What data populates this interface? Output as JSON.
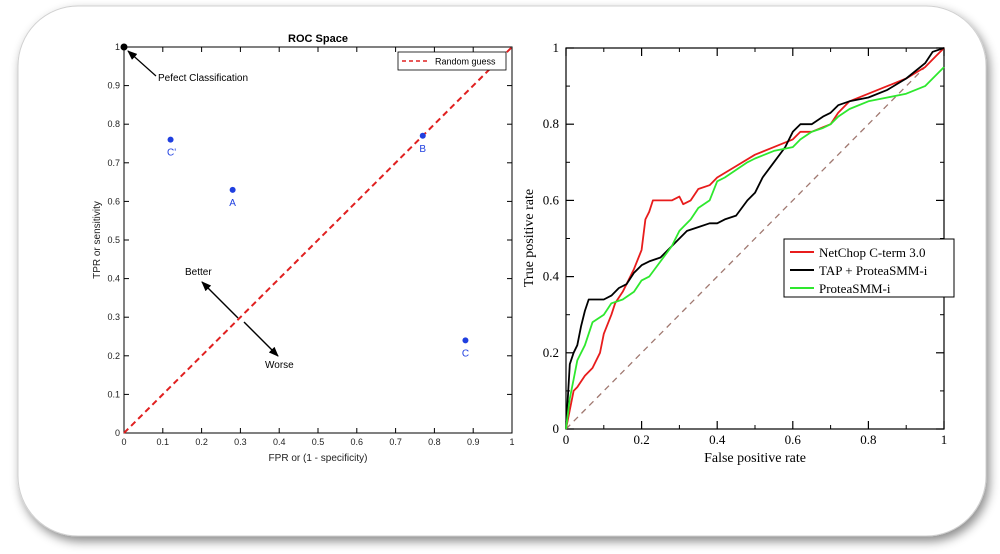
{
  "chart_data": [
    {
      "type": "scatter",
      "title": "ROC Space",
      "xlabel": "FPR or (1 - specificity)",
      "ylabel": "TPR or sensitivity",
      "xlim": [
        0,
        1
      ],
      "ylim": [
        0,
        1
      ],
      "xticks": [
        "0",
        "0.1",
        "0.2",
        "0.3",
        "0.4",
        "0.5",
        "0.6",
        "0.7",
        "0.8",
        "0.9",
        "1"
      ],
      "yticks": [
        "0",
        "0.1",
        "0.2",
        "0.3",
        "0.4",
        "0.5",
        "0.6",
        "0.7",
        "0.8",
        "0.9",
        "1"
      ],
      "grid": false,
      "legend": "top-right",
      "points": [
        {
          "label": "A",
          "x": 0.28,
          "y": 0.63
        },
        {
          "label": "B",
          "x": 0.77,
          "y": 0.77
        },
        {
          "label": "C",
          "x": 0.88,
          "y": 0.24
        },
        {
          "label": "C'",
          "x": 0.12,
          "y": 0.76
        }
      ],
      "perfect_point": {
        "x": 0,
        "y": 1,
        "label": "Pefect Classification"
      },
      "reference_line": {
        "name": "Random guess",
        "x": [
          0,
          1
        ],
        "y": [
          0,
          1
        ],
        "color": "#e02020",
        "style": "dashed"
      },
      "annotations": {
        "better": "Better",
        "worse": "Worse"
      },
      "point_color": "#1f3fe0"
    },
    {
      "type": "line",
      "title": "",
      "xlabel": "False positive rate",
      "ylabel": "True positive rate",
      "xlim": [
        0,
        1
      ],
      "ylim": [
        0,
        1
      ],
      "xticks": [
        "0",
        "0.2",
        "0.4",
        "0.6",
        "0.8",
        "1"
      ],
      "yticks": [
        "0",
        "0.2",
        "0.4",
        "0.6",
        "0.8",
        "1"
      ],
      "grid": false,
      "legend": "center-right",
      "reference_line": {
        "x": [
          0,
          1
        ],
        "y": [
          0,
          1
        ],
        "color": "#a07870",
        "style": "dashed"
      },
      "series": [
        {
          "name": "NetChop C-term 3.0",
          "color": "#e81c1c",
          "x": [
            0,
            0.02,
            0.03,
            0.05,
            0.07,
            0.09,
            0.1,
            0.12,
            0.13,
            0.15,
            0.16,
            0.18,
            0.2,
            0.21,
            0.22,
            0.23,
            0.25,
            0.28,
            0.3,
            0.31,
            0.33,
            0.35,
            0.38,
            0.4,
            0.45,
            0.5,
            0.55,
            0.6,
            0.62,
            0.65,
            0.7,
            0.72,
            0.75,
            0.8,
            0.85,
            0.9,
            0.95,
            0.98,
            1.0
          ],
          "y": [
            0,
            0.1,
            0.11,
            0.14,
            0.16,
            0.2,
            0.25,
            0.3,
            0.33,
            0.36,
            0.38,
            0.42,
            0.47,
            0.55,
            0.57,
            0.6,
            0.6,
            0.6,
            0.61,
            0.59,
            0.6,
            0.63,
            0.64,
            0.66,
            0.69,
            0.72,
            0.74,
            0.76,
            0.78,
            0.78,
            0.8,
            0.83,
            0.86,
            0.88,
            0.9,
            0.92,
            0.95,
            0.98,
            1.0
          ]
        },
        {
          "name": "TAP + ProteaSMM-i",
          "color": "#000000",
          "x": [
            0,
            0.01,
            0.02,
            0.03,
            0.04,
            0.05,
            0.06,
            0.08,
            0.1,
            0.12,
            0.14,
            0.16,
            0.18,
            0.2,
            0.22,
            0.25,
            0.28,
            0.3,
            0.32,
            0.35,
            0.38,
            0.4,
            0.42,
            0.45,
            0.48,
            0.5,
            0.52,
            0.55,
            0.58,
            0.6,
            0.62,
            0.65,
            0.68,
            0.7,
            0.72,
            0.75,
            0.8,
            0.85,
            0.9,
            0.95,
            0.97,
            1.0
          ],
          "y": [
            0,
            0.17,
            0.2,
            0.22,
            0.27,
            0.31,
            0.34,
            0.34,
            0.34,
            0.35,
            0.37,
            0.38,
            0.41,
            0.43,
            0.44,
            0.45,
            0.48,
            0.5,
            0.52,
            0.53,
            0.54,
            0.54,
            0.55,
            0.56,
            0.6,
            0.62,
            0.66,
            0.7,
            0.74,
            0.78,
            0.8,
            0.8,
            0.82,
            0.83,
            0.85,
            0.86,
            0.87,
            0.89,
            0.92,
            0.96,
            0.99,
            1.0
          ]
        },
        {
          "name": "ProteaSMM-i",
          "color": "#2ee82e",
          "x": [
            0,
            0.01,
            0.02,
            0.03,
            0.05,
            0.07,
            0.1,
            0.12,
            0.15,
            0.18,
            0.2,
            0.22,
            0.25,
            0.28,
            0.3,
            0.33,
            0.35,
            0.38,
            0.4,
            0.42,
            0.45,
            0.48,
            0.5,
            0.55,
            0.6,
            0.62,
            0.65,
            0.68,
            0.7,
            0.72,
            0.75,
            0.8,
            0.85,
            0.9,
            0.95,
            0.98,
            1.0
          ],
          "y": [
            0,
            0.08,
            0.13,
            0.18,
            0.22,
            0.28,
            0.3,
            0.33,
            0.34,
            0.36,
            0.39,
            0.4,
            0.44,
            0.48,
            0.52,
            0.55,
            0.58,
            0.6,
            0.65,
            0.66,
            0.68,
            0.7,
            0.71,
            0.73,
            0.74,
            0.76,
            0.78,
            0.79,
            0.8,
            0.82,
            0.84,
            0.86,
            0.87,
            0.88,
            0.9,
            0.93,
            0.95
          ]
        }
      ]
    }
  ]
}
